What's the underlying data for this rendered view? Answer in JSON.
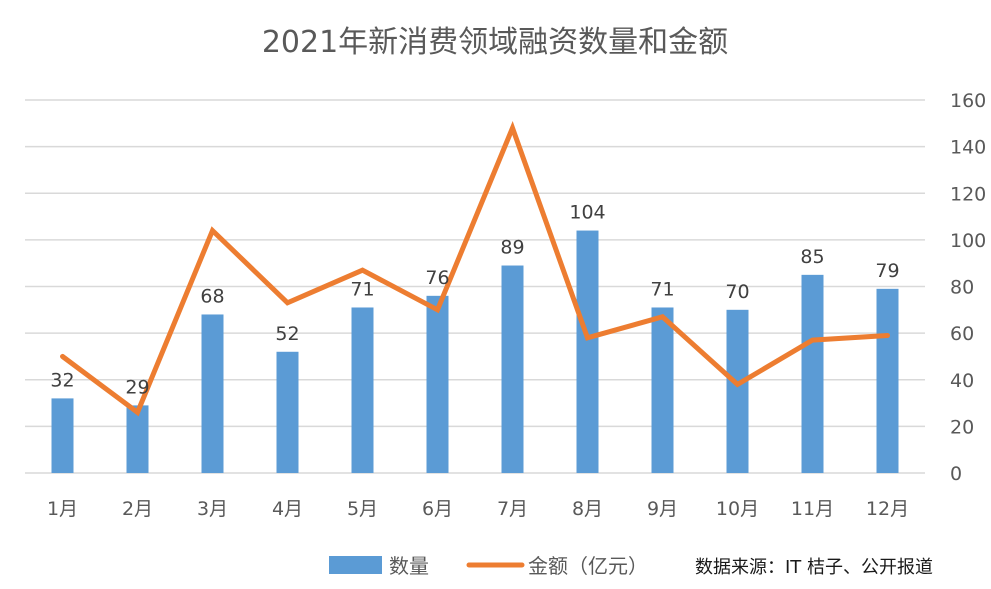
{
  "chart_data": {
    "type": "bar",
    "title": "2021年新消费领域融资数量和金额",
    "categories": [
      "1月",
      "2月",
      "3月",
      "4月",
      "5月",
      "6月",
      "7月",
      "8月",
      "9月",
      "10月",
      "11月",
      "12月"
    ],
    "series": [
      {
        "name": "数量",
        "type": "bar",
        "color": "#5b9bd5",
        "axis": "right",
        "values": [
          32,
          29,
          68,
          52,
          71,
          76,
          89,
          104,
          71,
          70,
          85,
          79
        ]
      },
      {
        "name": "金额（亿元）",
        "type": "line",
        "color": "#ed7d31",
        "axis": "right",
        "values": [
          50,
          26,
          104,
          73,
          87,
          70,
          148,
          58,
          67,
          38,
          57,
          59
        ]
      }
    ],
    "y_axis": {
      "position": "right",
      "min": 0,
      "max": 160,
      "step": 20,
      "ticks": [
        "0",
        "20",
        "40",
        "60",
        "80",
        "100",
        "120",
        "140",
        "160"
      ]
    },
    "grid": true,
    "legend": {
      "placement": "bottom"
    },
    "source_note": "数据来源：IT 桔子、公开报道"
  }
}
